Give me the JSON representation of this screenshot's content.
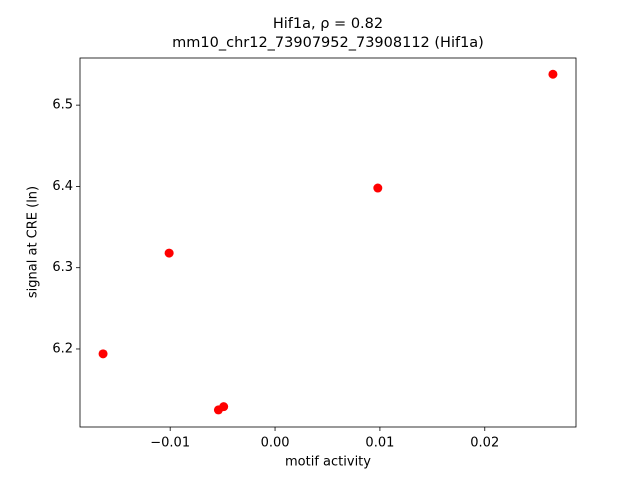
{
  "chart_data": {
    "type": "scatter",
    "title": "Hif1a, ρ = 0.82",
    "subtitle": "mm10_chr12_73907952_73908112 (Hif1a)",
    "x_label": "motif activity",
    "y_label": "signal at CRE (ln)",
    "color": "#ff0000",
    "x": [
      -0.0164,
      -0.0101,
      -0.0054,
      -0.0049,
      0.0098,
      0.0265
    ],
    "values": [
      6.194,
      6.318,
      6.125,
      6.129,
      6.398,
      6.538
    ],
    "xlim": [
      -0.0186,
      0.0287
    ],
    "ylim": [
      6.104,
      6.558
    ],
    "xticks": [
      {
        "value": -0.01,
        "label": "−0.01"
      },
      {
        "value": 0,
        "label": "0.00"
      },
      0.01,
      0.02
    ],
    "yticks": [
      6.2,
      6.3,
      6.4,
      6.5
    ],
    "grid": false
  }
}
